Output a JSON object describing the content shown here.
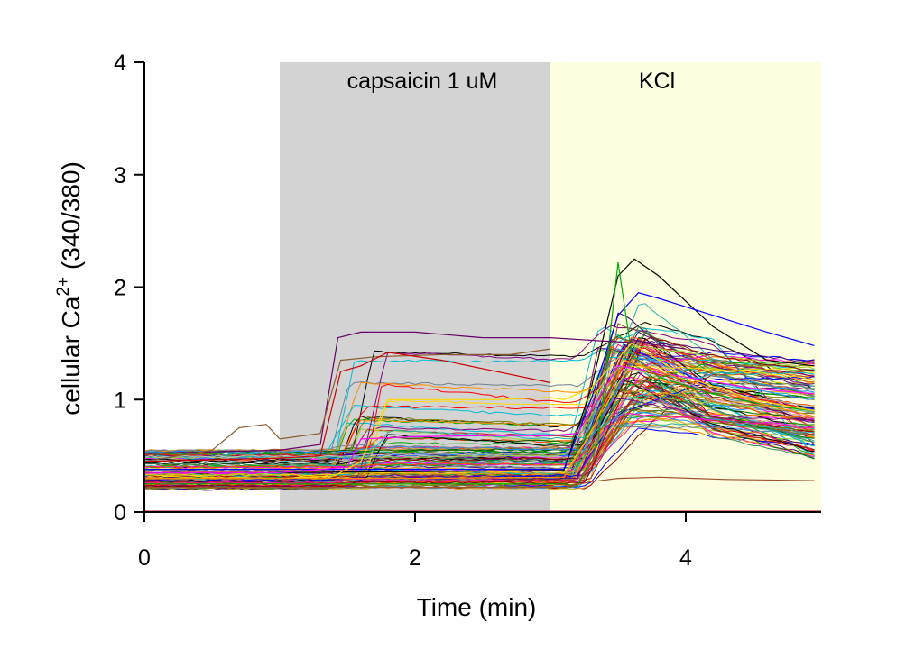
{
  "chart_data": {
    "type": "line",
    "title": "",
    "xlabel": "Time (min)",
    "ylabel": {
      "prefix": "cellular Ca",
      "superscript": "2+",
      "suffix": " (340/380)"
    },
    "xlim": [
      0,
      5
    ],
    "ylim": [
      0,
      4
    ],
    "xticks": [
      0,
      2,
      4
    ],
    "xtick_labels": [
      "0",
      "2",
      "4"
    ],
    "yticks": [
      0,
      1,
      2,
      3,
      4
    ],
    "ytick_labels": [
      "0",
      "1",
      "2",
      "3",
      "4"
    ],
    "grid": false,
    "legend": "none",
    "bands": [
      {
        "label": "capsaicin 1 uM",
        "x_start": 1.0,
        "x_end": 3.0,
        "color": "#d3d3d3"
      },
      {
        "label": "KCl",
        "x_start": 3.0,
        "x_end": 5.0,
        "color": "#fdfde0"
      }
    ],
    "traces_note_count": 120,
    "representative_series": [
      {
        "color": "#000000",
        "x": [
          0,
          1,
          2,
          3.1,
          3.3,
          3.5,
          3.62,
          3.8,
          4.2,
          4.6,
          4.95
        ],
        "y": [
          0.35,
          0.35,
          0.36,
          0.37,
          1.1,
          2.1,
          2.25,
          2.1,
          1.65,
          1.35,
          1.3
        ]
      },
      {
        "color": "#0000ff",
        "x": [
          0,
          1,
          2,
          3.1,
          3.3,
          3.5,
          3.65,
          3.8,
          4.2,
          4.6,
          4.95
        ],
        "y": [
          0.38,
          0.38,
          0.38,
          0.38,
          1.0,
          1.75,
          1.95,
          1.9,
          1.75,
          1.6,
          1.48
        ]
      },
      {
        "color": "#00aa00",
        "x": [
          0,
          1,
          2,
          3.1,
          3.2,
          3.35,
          3.5,
          3.6,
          3.8,
          4.2,
          4.6,
          4.95
        ],
        "y": [
          0.25,
          0.25,
          0.25,
          0.25,
          0.23,
          0.6,
          2.22,
          1.4,
          1.2,
          1.05,
          0.95,
          0.9
        ]
      },
      {
        "color": "#660066",
        "x": [
          0,
          1,
          1.3,
          1.43,
          1.6,
          2.0,
          2.5,
          3.0,
          3.4,
          3.7,
          4.0
        ],
        "y": [
          0.52,
          0.55,
          0.6,
          1.55,
          1.6,
          1.6,
          1.55,
          1.55,
          1.52,
          1.5,
          1.45
        ]
      },
      {
        "color": "#8b5a2b",
        "x": [
          0,
          0.5,
          0.7,
          0.9,
          1.0,
          1.3,
          1.45,
          1.7,
          2.2,
          2.7,
          3.0
        ],
        "y": [
          0.45,
          0.55,
          0.75,
          0.78,
          0.65,
          0.7,
          1.35,
          1.38,
          1.4,
          1.4,
          1.45
        ]
      },
      {
        "color": "#cc0000",
        "x": [
          0,
          1,
          1.3,
          1.45,
          1.6,
          1.8,
          2.2,
          2.6,
          3.0
        ],
        "y": [
          0.45,
          0.48,
          0.5,
          1.25,
          1.3,
          1.42,
          1.35,
          1.25,
          1.15
        ]
      },
      {
        "color": "#ffd700",
        "x": [
          0,
          1,
          1.4,
          1.6,
          1.8,
          2.2,
          2.6,
          3.0,
          3.1,
          3.3,
          3.6,
          4.0,
          4.5,
          4.95
        ],
        "y": [
          0.3,
          0.3,
          0.32,
          0.45,
          1.0,
          1.0,
          1.0,
          1.02,
          1.0,
          1.1,
          1.5,
          1.2,
          1.0,
          0.9
        ]
      },
      {
        "color": "#ff00ff",
        "x": [
          0,
          1,
          1.5,
          1.6,
          2.0,
          2.5,
          3.0,
          3.2,
          3.5,
          4.0,
          4.5,
          4.95
        ],
        "y": [
          0.35,
          0.35,
          0.4,
          0.65,
          0.67,
          0.68,
          0.68,
          0.7,
          1.3,
          1.2,
          1.1,
          1.05
        ]
      },
      {
        "color": "#ff8c00",
        "x": [
          0,
          1,
          2,
          3.1,
          3.3,
          3.55,
          3.8,
          4.2,
          4.6,
          4.95
        ],
        "y": [
          0.3,
          0.3,
          0.3,
          0.31,
          0.7,
          1.35,
          1.25,
          1.1,
          0.95,
          0.85
        ]
      },
      {
        "color": "#a0522d",
        "x": [
          0,
          1,
          2,
          3.1,
          3.3,
          3.5,
          3.8,
          4.3,
          4.95
        ],
        "y": [
          0.22,
          0.22,
          0.22,
          0.22,
          0.27,
          0.3,
          0.31,
          0.29,
          0.28
        ]
      }
    ]
  }
}
